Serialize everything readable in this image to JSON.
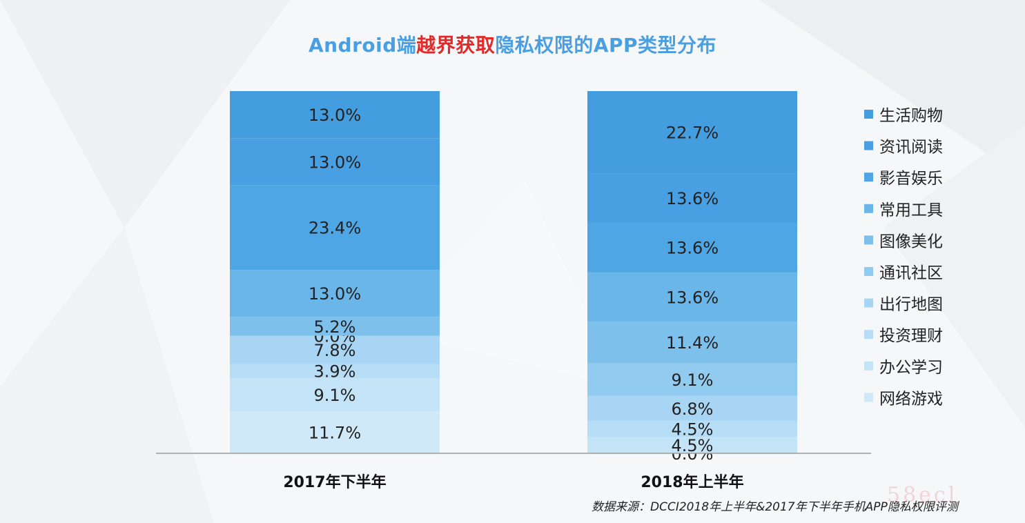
{
  "title": {
    "part1": "Android端",
    "part2": "越界获取",
    "part3": "隐私权限的APP类型分布"
  },
  "colors": {
    "title_blue": "#4a9fe0",
    "title_red": "#e12a2a",
    "series": [
      "#449ddf",
      "#489fe1",
      "#4ea6e4",
      "#6bb6e9",
      "#7ec0ec",
      "#92cbf0",
      "#a7d5f3",
      "#b6ddf5",
      "#c3e3f7",
      "#cfe9f9"
    ]
  },
  "chart_data": {
    "type": "bar",
    "stacked": true,
    "categories": [
      "2017年下半年",
      "2018年上半年"
    ],
    "series": [
      {
        "name": "生活购物",
        "values": [
          13.0,
          22.7
        ]
      },
      {
        "name": "资讯阅读",
        "values": [
          13.0,
          13.6
        ]
      },
      {
        "name": "影音娱乐",
        "values": [
          23.4,
          13.6
        ]
      },
      {
        "name": "常用工具",
        "values": [
          13.0,
          13.6
        ]
      },
      {
        "name": "图像美化",
        "values": [
          5.2,
          11.4
        ]
      },
      {
        "name": "通讯社区",
        "values": [
          0.0,
          9.1
        ]
      },
      {
        "name": "出行地图",
        "values": [
          7.8,
          6.8
        ]
      },
      {
        "name": "投资理财",
        "values": [
          3.9,
          4.5
        ]
      },
      {
        "name": "办公学习",
        "values": [
          9.1,
          4.5
        ]
      },
      {
        "name": "网络游戏",
        "values": [
          11.7,
          0.0
        ]
      }
    ],
    "data_label_format": "0.0%",
    "legend_position": "right",
    "grid": false
  },
  "source": "数据来源：DCCI2018年上半年&2017年下半年手机APP隐私权限评测",
  "watermark": "58ecl"
}
